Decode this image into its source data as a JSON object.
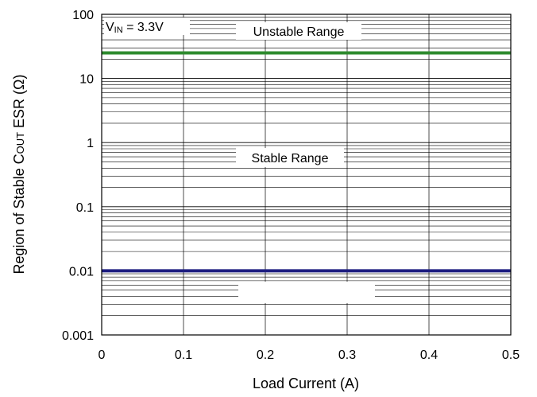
{
  "chart_data": {
    "type": "line",
    "title": "",
    "xlabel": "Load Current (A)",
    "ylabel": {
      "main": "Region of Stable C",
      "sub": "OUT",
      "tail": " ESR (Ω)"
    },
    "x_scale": "linear",
    "y_scale": "log",
    "xlim": [
      0,
      0.5
    ],
    "ylim": [
      0.001,
      100
    ],
    "x_ticks": [
      "0",
      "0.1",
      "0.2",
      "0.3",
      "0.4",
      "0.5"
    ],
    "y_ticks": [
      "0.001",
      "0.01",
      "0.1",
      "1",
      "10",
      "100"
    ],
    "grid": true,
    "series": [
      {
        "x": [
          0,
          0.5
        ],
        "y": [
          25,
          25
        ],
        "color": "#2e8b2e"
      },
      {
        "x": [
          0,
          0.5
        ],
        "y": [
          0.01,
          0.01
        ],
        "color": "#1c1c80"
      }
    ],
    "annotations": {
      "condition": {
        "prefix": "V",
        "sub": "IN",
        "suffix": " = 3.3V"
      },
      "unstable": "Unstable Range",
      "stable": "Stable Range"
    }
  }
}
